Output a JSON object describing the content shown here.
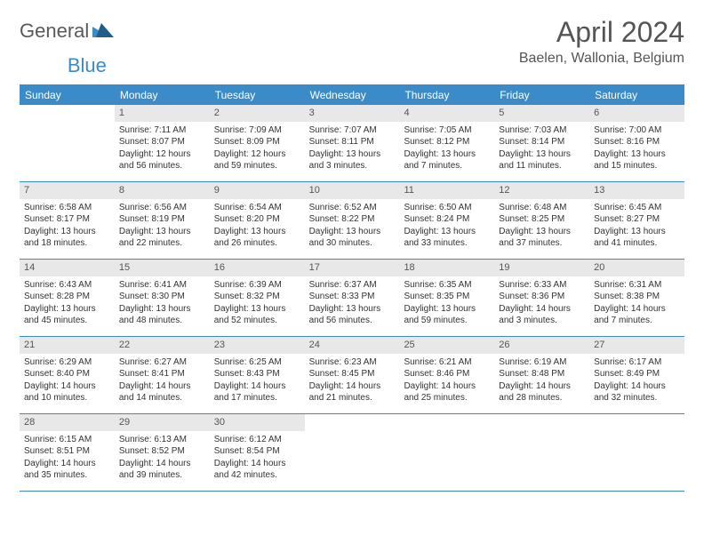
{
  "logo": {
    "text_a": "General",
    "text_b": "Blue",
    "accent_color": "#3b8bc8",
    "gray_color": "#5a5a5a"
  },
  "title": "April 2024",
  "location": "Baelen, Wallonia, Belgium",
  "weekdays": [
    "Sunday",
    "Monday",
    "Tuesday",
    "Wednesday",
    "Thursday",
    "Friday",
    "Saturday"
  ],
  "header_bg": "#3b8bc8",
  "header_fg": "#ffffff",
  "daynum_bg": "#e8e8e8",
  "rule_color": "#3b8bc8",
  "weeks": [
    [
      {
        "empty": true
      },
      {
        "n": "1",
        "sr": "Sunrise: 7:11 AM",
        "ss": "Sunset: 8:07 PM",
        "dl": "Daylight: 12 hours and 56 minutes."
      },
      {
        "n": "2",
        "sr": "Sunrise: 7:09 AM",
        "ss": "Sunset: 8:09 PM",
        "dl": "Daylight: 12 hours and 59 minutes."
      },
      {
        "n": "3",
        "sr": "Sunrise: 7:07 AM",
        "ss": "Sunset: 8:11 PM",
        "dl": "Daylight: 13 hours and 3 minutes."
      },
      {
        "n": "4",
        "sr": "Sunrise: 7:05 AM",
        "ss": "Sunset: 8:12 PM",
        "dl": "Daylight: 13 hours and 7 minutes."
      },
      {
        "n": "5",
        "sr": "Sunrise: 7:03 AM",
        "ss": "Sunset: 8:14 PM",
        "dl": "Daylight: 13 hours and 11 minutes."
      },
      {
        "n": "6",
        "sr": "Sunrise: 7:00 AM",
        "ss": "Sunset: 8:16 PM",
        "dl": "Daylight: 13 hours and 15 minutes."
      }
    ],
    [
      {
        "n": "7",
        "sr": "Sunrise: 6:58 AM",
        "ss": "Sunset: 8:17 PM",
        "dl": "Daylight: 13 hours and 18 minutes."
      },
      {
        "n": "8",
        "sr": "Sunrise: 6:56 AM",
        "ss": "Sunset: 8:19 PM",
        "dl": "Daylight: 13 hours and 22 minutes."
      },
      {
        "n": "9",
        "sr": "Sunrise: 6:54 AM",
        "ss": "Sunset: 8:20 PM",
        "dl": "Daylight: 13 hours and 26 minutes."
      },
      {
        "n": "10",
        "sr": "Sunrise: 6:52 AM",
        "ss": "Sunset: 8:22 PM",
        "dl": "Daylight: 13 hours and 30 minutes."
      },
      {
        "n": "11",
        "sr": "Sunrise: 6:50 AM",
        "ss": "Sunset: 8:24 PM",
        "dl": "Daylight: 13 hours and 33 minutes."
      },
      {
        "n": "12",
        "sr": "Sunrise: 6:48 AM",
        "ss": "Sunset: 8:25 PM",
        "dl": "Daylight: 13 hours and 37 minutes."
      },
      {
        "n": "13",
        "sr": "Sunrise: 6:45 AM",
        "ss": "Sunset: 8:27 PM",
        "dl": "Daylight: 13 hours and 41 minutes."
      }
    ],
    [
      {
        "n": "14",
        "sr": "Sunrise: 6:43 AM",
        "ss": "Sunset: 8:28 PM",
        "dl": "Daylight: 13 hours and 45 minutes."
      },
      {
        "n": "15",
        "sr": "Sunrise: 6:41 AM",
        "ss": "Sunset: 8:30 PM",
        "dl": "Daylight: 13 hours and 48 minutes."
      },
      {
        "n": "16",
        "sr": "Sunrise: 6:39 AM",
        "ss": "Sunset: 8:32 PM",
        "dl": "Daylight: 13 hours and 52 minutes."
      },
      {
        "n": "17",
        "sr": "Sunrise: 6:37 AM",
        "ss": "Sunset: 8:33 PM",
        "dl": "Daylight: 13 hours and 56 minutes."
      },
      {
        "n": "18",
        "sr": "Sunrise: 6:35 AM",
        "ss": "Sunset: 8:35 PM",
        "dl": "Daylight: 13 hours and 59 minutes."
      },
      {
        "n": "19",
        "sr": "Sunrise: 6:33 AM",
        "ss": "Sunset: 8:36 PM",
        "dl": "Daylight: 14 hours and 3 minutes."
      },
      {
        "n": "20",
        "sr": "Sunrise: 6:31 AM",
        "ss": "Sunset: 8:38 PM",
        "dl": "Daylight: 14 hours and 7 minutes."
      }
    ],
    [
      {
        "n": "21",
        "sr": "Sunrise: 6:29 AM",
        "ss": "Sunset: 8:40 PM",
        "dl": "Daylight: 14 hours and 10 minutes."
      },
      {
        "n": "22",
        "sr": "Sunrise: 6:27 AM",
        "ss": "Sunset: 8:41 PM",
        "dl": "Daylight: 14 hours and 14 minutes."
      },
      {
        "n": "23",
        "sr": "Sunrise: 6:25 AM",
        "ss": "Sunset: 8:43 PM",
        "dl": "Daylight: 14 hours and 17 minutes."
      },
      {
        "n": "24",
        "sr": "Sunrise: 6:23 AM",
        "ss": "Sunset: 8:45 PM",
        "dl": "Daylight: 14 hours and 21 minutes."
      },
      {
        "n": "25",
        "sr": "Sunrise: 6:21 AM",
        "ss": "Sunset: 8:46 PM",
        "dl": "Daylight: 14 hours and 25 minutes."
      },
      {
        "n": "26",
        "sr": "Sunrise: 6:19 AM",
        "ss": "Sunset: 8:48 PM",
        "dl": "Daylight: 14 hours and 28 minutes."
      },
      {
        "n": "27",
        "sr": "Sunrise: 6:17 AM",
        "ss": "Sunset: 8:49 PM",
        "dl": "Daylight: 14 hours and 32 minutes."
      }
    ],
    [
      {
        "n": "28",
        "sr": "Sunrise: 6:15 AM",
        "ss": "Sunset: 8:51 PM",
        "dl": "Daylight: 14 hours and 35 minutes."
      },
      {
        "n": "29",
        "sr": "Sunrise: 6:13 AM",
        "ss": "Sunset: 8:52 PM",
        "dl": "Daylight: 14 hours and 39 minutes."
      },
      {
        "n": "30",
        "sr": "Sunrise: 6:12 AM",
        "ss": "Sunset: 8:54 PM",
        "dl": "Daylight: 14 hours and 42 minutes."
      },
      {
        "empty": true
      },
      {
        "empty": true
      },
      {
        "empty": true
      },
      {
        "empty": true
      }
    ]
  ]
}
